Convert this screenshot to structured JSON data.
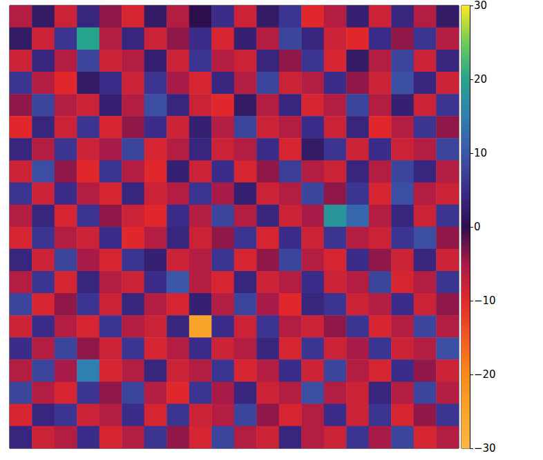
{
  "chart_data": {
    "type": "heatmap",
    "tick_labels": false,
    "cells": [
      [
        -6,
        2,
        -8,
        4,
        -4,
        -9,
        2,
        -6,
        0,
        5,
        -8,
        2,
        6,
        -10,
        -6,
        3,
        -8,
        4,
        -6,
        2
      ],
      [
        2,
        -8,
        6,
        20,
        -6,
        4,
        -8,
        -4,
        5,
        -9,
        3,
        -6,
        8,
        4,
        -8,
        -10,
        5,
        -4,
        6,
        -6
      ],
      [
        -8,
        4,
        -6,
        8,
        -8,
        -6,
        3,
        -8,
        6,
        -6,
        -8,
        4,
        -4,
        6,
        -9,
        2,
        -6,
        8,
        -8,
        4
      ],
      [
        6,
        -6,
        -10,
        2,
        5,
        -8,
        6,
        -5,
        -9,
        4,
        -6,
        8,
        -8,
        -6,
        5,
        -4,
        -8,
        9,
        4,
        -8
      ],
      [
        -4,
        8,
        -6,
        -8,
        3,
        -6,
        9,
        4,
        -8,
        -10,
        2,
        -6,
        4,
        -9,
        -6,
        8,
        -6,
        3,
        -8,
        6
      ],
      [
        -10,
        4,
        -8,
        6,
        -9,
        -4,
        5,
        -8,
        3,
        -6,
        8,
        -8,
        -6,
        5,
        -8,
        4,
        -10,
        -6,
        6,
        -4
      ],
      [
        4,
        -6,
        6,
        -8,
        -5,
        8,
        -9,
        -6,
        4,
        -8,
        -6,
        5,
        -9,
        2,
        6,
        -8,
        5,
        -8,
        -6,
        8
      ],
      [
        -8,
        9,
        -4,
        -10,
        6,
        -6,
        -10,
        3,
        -8,
        5,
        -9,
        -4,
        7,
        -6,
        -8,
        4,
        -6,
        8,
        4,
        -6
      ],
      [
        6,
        -8,
        5,
        -6,
        -9,
        4,
        -8,
        -6,
        6,
        -5,
        3,
        -8,
        -6,
        8,
        -4,
        6,
        -9,
        9,
        -6,
        -8
      ],
      [
        -6,
        4,
        -9,
        6,
        -4,
        -8,
        -10,
        5,
        -6,
        8,
        -6,
        4,
        -8,
        -5,
        18,
        12,
        -6,
        4,
        -8,
        6
      ],
      [
        -9,
        6,
        -6,
        -8,
        5,
        -10,
        -6,
        4,
        -8,
        -4,
        6,
        -9,
        5,
        -8,
        6,
        -6,
        -8,
        6,
        9,
        -4
      ],
      [
        4,
        -8,
        8,
        -5,
        -9,
        6,
        3,
        -8,
        -6,
        6,
        -9,
        -4,
        8,
        -6,
        -9,
        5,
        -4,
        -8,
        4,
        -8
      ],
      [
        -6,
        6,
        -9,
        4,
        -6,
        -8,
        5,
        10,
        -6,
        -9,
        4,
        -8,
        -6,
        5,
        -8,
        -6,
        8,
        -9,
        -6,
        6
      ],
      [
        8,
        -9,
        -4,
        6,
        -8,
        4,
        -6,
        -9,
        3,
        -6,
        8,
        -5,
        -10,
        4,
        6,
        -8,
        -6,
        5,
        -8,
        -4
      ],
      [
        -8,
        5,
        -6,
        -9,
        6,
        -6,
        -8,
        4,
        -25,
        5,
        -8,
        6,
        -6,
        -8,
        -4,
        6,
        -9,
        -6,
        8,
        -6
      ],
      [
        5,
        -6,
        8,
        -4,
        -8,
        6,
        -9,
        -6,
        5,
        -8,
        -6,
        4,
        -9,
        6,
        -8,
        -5,
        6,
        -8,
        -6,
        9
      ],
      [
        -6,
        8,
        -5,
        15,
        -9,
        -6,
        4,
        -8,
        -6,
        6,
        -9,
        -6,
        5,
        -8,
        8,
        -6,
        -9,
        5,
        -4,
        -8
      ],
      [
        8,
        -6,
        -9,
        6,
        -4,
        8,
        -6,
        -10,
        6,
        -5,
        4,
        -8,
        -6,
        9,
        -6,
        -8,
        4,
        -6,
        8,
        -6
      ],
      [
        -9,
        4,
        6,
        -8,
        -6,
        5,
        -9,
        6,
        -8,
        -6,
        8,
        -4,
        -9,
        -6,
        5,
        -8,
        6,
        -9,
        -4,
        6
      ],
      [
        4,
        -8,
        -6,
        5,
        -9,
        -6,
        6,
        -4,
        -9,
        8,
        -6,
        -8,
        4,
        -6,
        -8,
        6,
        -5,
        8,
        -9,
        -6
      ]
    ],
    "colorbar": {
      "range": [
        -30,
        30
      ],
      "ticks": [
        {
          "value": -30,
          "label": "−30"
        },
        {
          "value": -20,
          "label": "−20"
        },
        {
          "value": -10,
          "label": "−10"
        },
        0,
        10,
        20,
        30
      ]
    }
  }
}
